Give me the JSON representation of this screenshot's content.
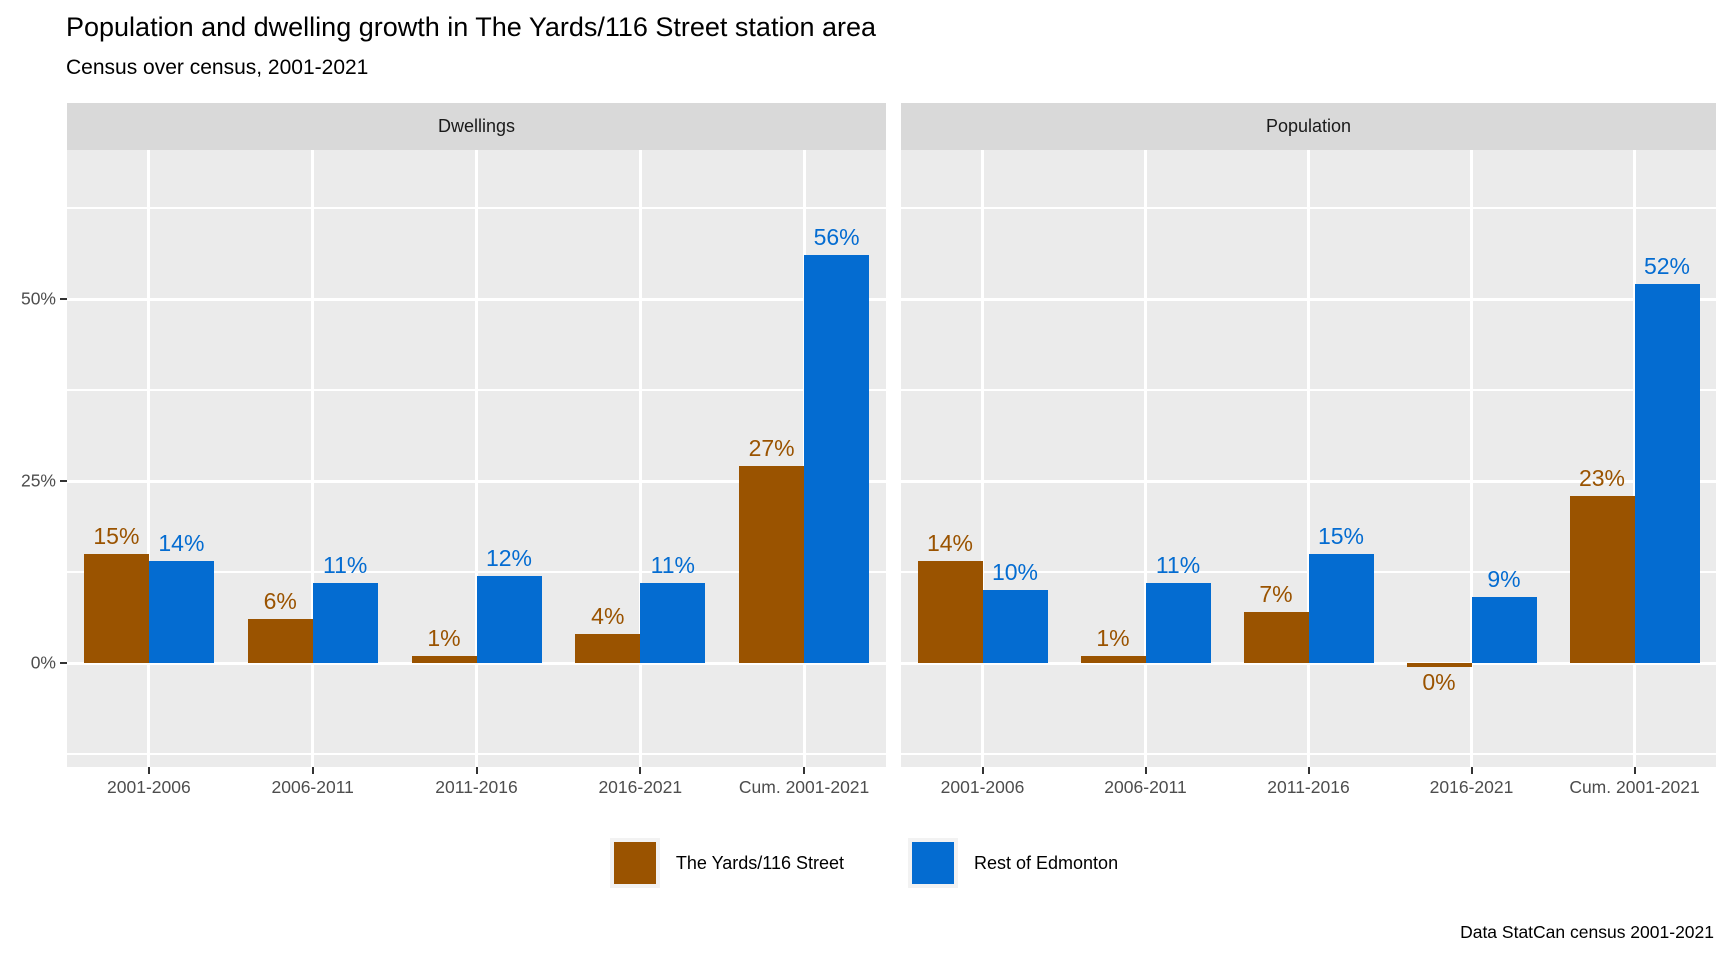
{
  "header": {
    "title": "Population and dwelling growth in The Yards/116 Street station area",
    "subtitle": "Census over census, 2001-2021"
  },
  "footer": {
    "caption": "Data StatCan census 2001-2021"
  },
  "legend": {
    "items": [
      {
        "label": "The Yards/116 Street",
        "color": "#9A5300"
      },
      {
        "label": "Rest of Edmonton",
        "color": "#046CD1"
      }
    ]
  },
  "axes": {
    "y_ticks": [
      {
        "label": "0%",
        "value": 0
      },
      {
        "label": "25%",
        "value": 25
      },
      {
        "label": "50%",
        "value": 50
      }
    ],
    "y_minor": [
      -12.5,
      12.5,
      37.5,
      62.5
    ]
  },
  "colors": {
    "panel_bg": "#EBEBEB",
    "strip_bg": "#D9D9D9",
    "gridline": "#FFFFFF",
    "axis_text": "#4D4D4D",
    "tick_mark": "#333333"
  },
  "chart_data": {
    "type": "bar",
    "categories": [
      "2001-2006",
      "2006-2011",
      "2011-2016",
      "2016-2021",
      "Cum. 2001-2021"
    ],
    "title": "Population and dwelling growth in The Yards/116 Street station area",
    "subtitle": "Census over census, 2001-2021",
    "caption": "Data StatCan census 2001-2021",
    "xlabel": "",
    "ylabel": "",
    "ylim": [
      -14.3,
      70.5
    ],
    "grid": true,
    "legend_position": "bottom",
    "facets": [
      {
        "label": "Dwellings",
        "series": [
          {
            "name": "The Yards/116 Street",
            "color": "#9A5300",
            "values": [
              15,
              6,
              1,
              4,
              27
            ],
            "labels": [
              "15%",
              "6%",
              "1%",
              "4%",
              "27%"
            ]
          },
          {
            "name": "Rest of Edmonton",
            "color": "#046CD1",
            "values": [
              14,
              11,
              12,
              11,
              56
            ],
            "labels": [
              "14%",
              "11%",
              "12%",
              "11%",
              "56%"
            ]
          }
        ]
      },
      {
        "label": "Population",
        "series": [
          {
            "name": "The Yards/116 Street",
            "color": "#9A5300",
            "values": [
              14,
              1,
              7,
              -0.5,
              23
            ],
            "labels": [
              "14%",
              "1%",
              "7%",
              "0%",
              "23%"
            ]
          },
          {
            "name": "Rest of Edmonton",
            "color": "#046CD1",
            "values": [
              10,
              11,
              15,
              9,
              52
            ],
            "labels": [
              "10%",
              "11%",
              "15%",
              "9%",
              "52%"
            ]
          }
        ]
      }
    ]
  }
}
